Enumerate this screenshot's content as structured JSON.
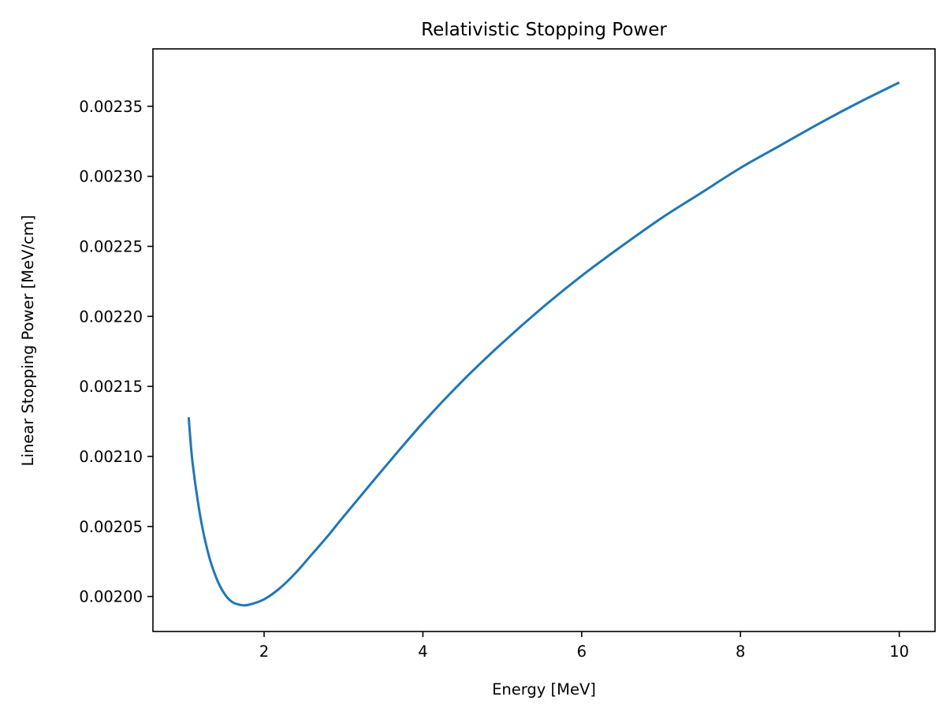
{
  "chart_data": {
    "type": "line",
    "title": "Relativistic Stopping Power",
    "xlabel": "Energy [MeV]",
    "ylabel": "Linear Stopping Power [MeV/cm]",
    "xlim": [
      0.6,
      10.45
    ],
    "ylim": [
      0.001975,
      0.002391
    ],
    "x_ticks": [
      2,
      4,
      6,
      8,
      10
    ],
    "x_tick_labels": [
      "2",
      "4",
      "6",
      "8",
      "10"
    ],
    "y_ticks": [
      0.002,
      0.00205,
      0.0021,
      0.00215,
      0.0022,
      0.00225,
      0.0023,
      0.00235
    ],
    "y_tick_labels": [
      "0.00200",
      "0.00205",
      "0.00210",
      "0.00215",
      "0.00220",
      "0.00225",
      "0.00230",
      "0.00235"
    ],
    "grid": false,
    "legend": "none",
    "series": [
      {
        "color": "#1f77b4",
        "x": [
          1.05,
          1.1,
          1.2,
          1.3,
          1.4,
          1.5,
          1.6,
          1.7,
          1.8,
          2.0,
          2.2,
          2.4,
          2.6,
          2.8,
          3.0,
          3.5,
          4.0,
          4.5,
          5.0,
          5.5,
          6.0,
          6.5,
          7.0,
          7.5,
          8.0,
          8.5,
          9.0,
          9.5,
          10.0
        ],
        "y": [
          0.002128,
          0.002095,
          0.002056,
          0.00203,
          0.002013,
          0.002002,
          0.001996,
          0.001994,
          0.001994,
          0.001998,
          0.002006,
          0.002017,
          0.00203,
          0.002043,
          0.002057,
          0.002091,
          0.002124,
          0.002154,
          0.002181,
          0.002206,
          0.002229,
          0.00225,
          0.00227,
          0.002288,
          0.002306,
          0.002322,
          0.002338,
          0.002353,
          0.002367
        ]
      }
    ]
  }
}
